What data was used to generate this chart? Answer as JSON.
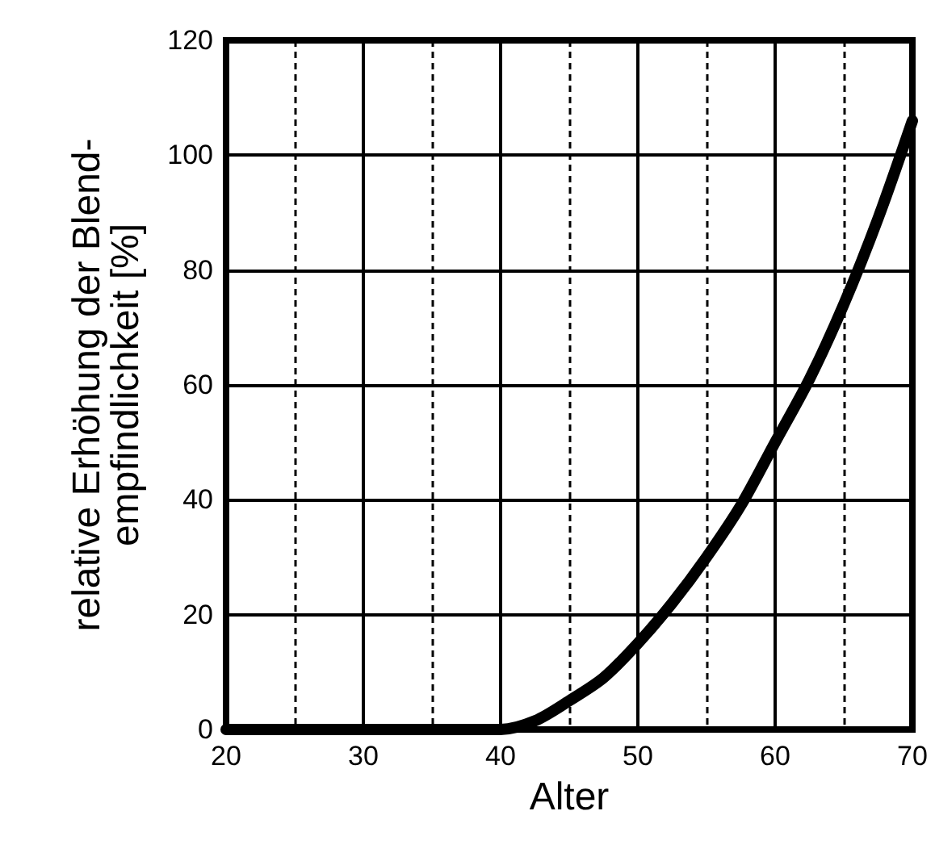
{
  "chart_data": {
    "type": "line",
    "xlabel": "Alter",
    "ylabel": "relative Erhöhung der Blend-\nempfindlichkeit [%]",
    "x": [
      20,
      25,
      30,
      35,
      40,
      42.5,
      45,
      47.5,
      50,
      52.5,
      55,
      57.5,
      60,
      62.5,
      65,
      67.5,
      70
    ],
    "series": [
      {
        "color": "#000000",
        "values": [
          0,
          0,
          0,
          0,
          0,
          1.5,
          5,
          9,
          15,
          22,
          30,
          39,
          50,
          61,
          74,
          89,
          106
        ]
      }
    ],
    "xlim": [
      20,
      70
    ],
    "xticks": [
      20,
      30,
      40,
      50,
      60,
      70
    ],
    "ylim": [
      0,
      120
    ],
    "yticks": [
      0,
      20,
      40,
      60,
      80,
      100,
      120
    ],
    "grid": true,
    "line_style": "solid"
  }
}
